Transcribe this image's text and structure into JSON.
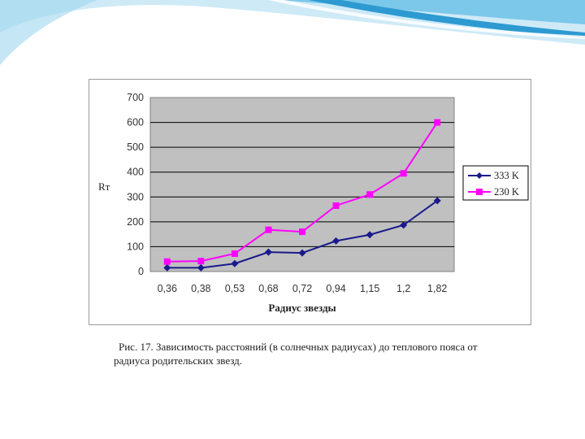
{
  "colors": {
    "plot_background": "#c0c0c0",
    "series_1": "#1a1a8c",
    "series_2": "#ff00ff",
    "decor_light": "#cfeaf7",
    "decor_mid": "#7cc8ea",
    "decor_dark": "#2d9ad1"
  },
  "chart_data": {
    "type": "line",
    "title": "",
    "xlabel": "Радиус звезды",
    "ylabel": "Rт",
    "ylim": [
      0,
      700
    ],
    "yticks": [
      0,
      100,
      200,
      300,
      400,
      500,
      600,
      700
    ],
    "grid": true,
    "legend_position": "right",
    "categories": [
      "0,36",
      "0,38",
      "0,53",
      "0,68",
      "0,72",
      "0,94",
      "1,15",
      "1,2",
      "1,82"
    ],
    "series": [
      {
        "name": "333 K",
        "marker": "diamond",
        "values": [
          15,
          15,
          32,
          78,
          75,
          123,
          148,
          187,
          285
        ]
      },
      {
        "name": "230 K",
        "marker": "square",
        "values": [
          40,
          42,
          72,
          168,
          160,
          265,
          310,
          395,
          600
        ]
      }
    ]
  },
  "caption": "Рис. 17. Зависимость расстояний (в солнечных радиусах) до теплового пояса от радиуса родительских звезд."
}
